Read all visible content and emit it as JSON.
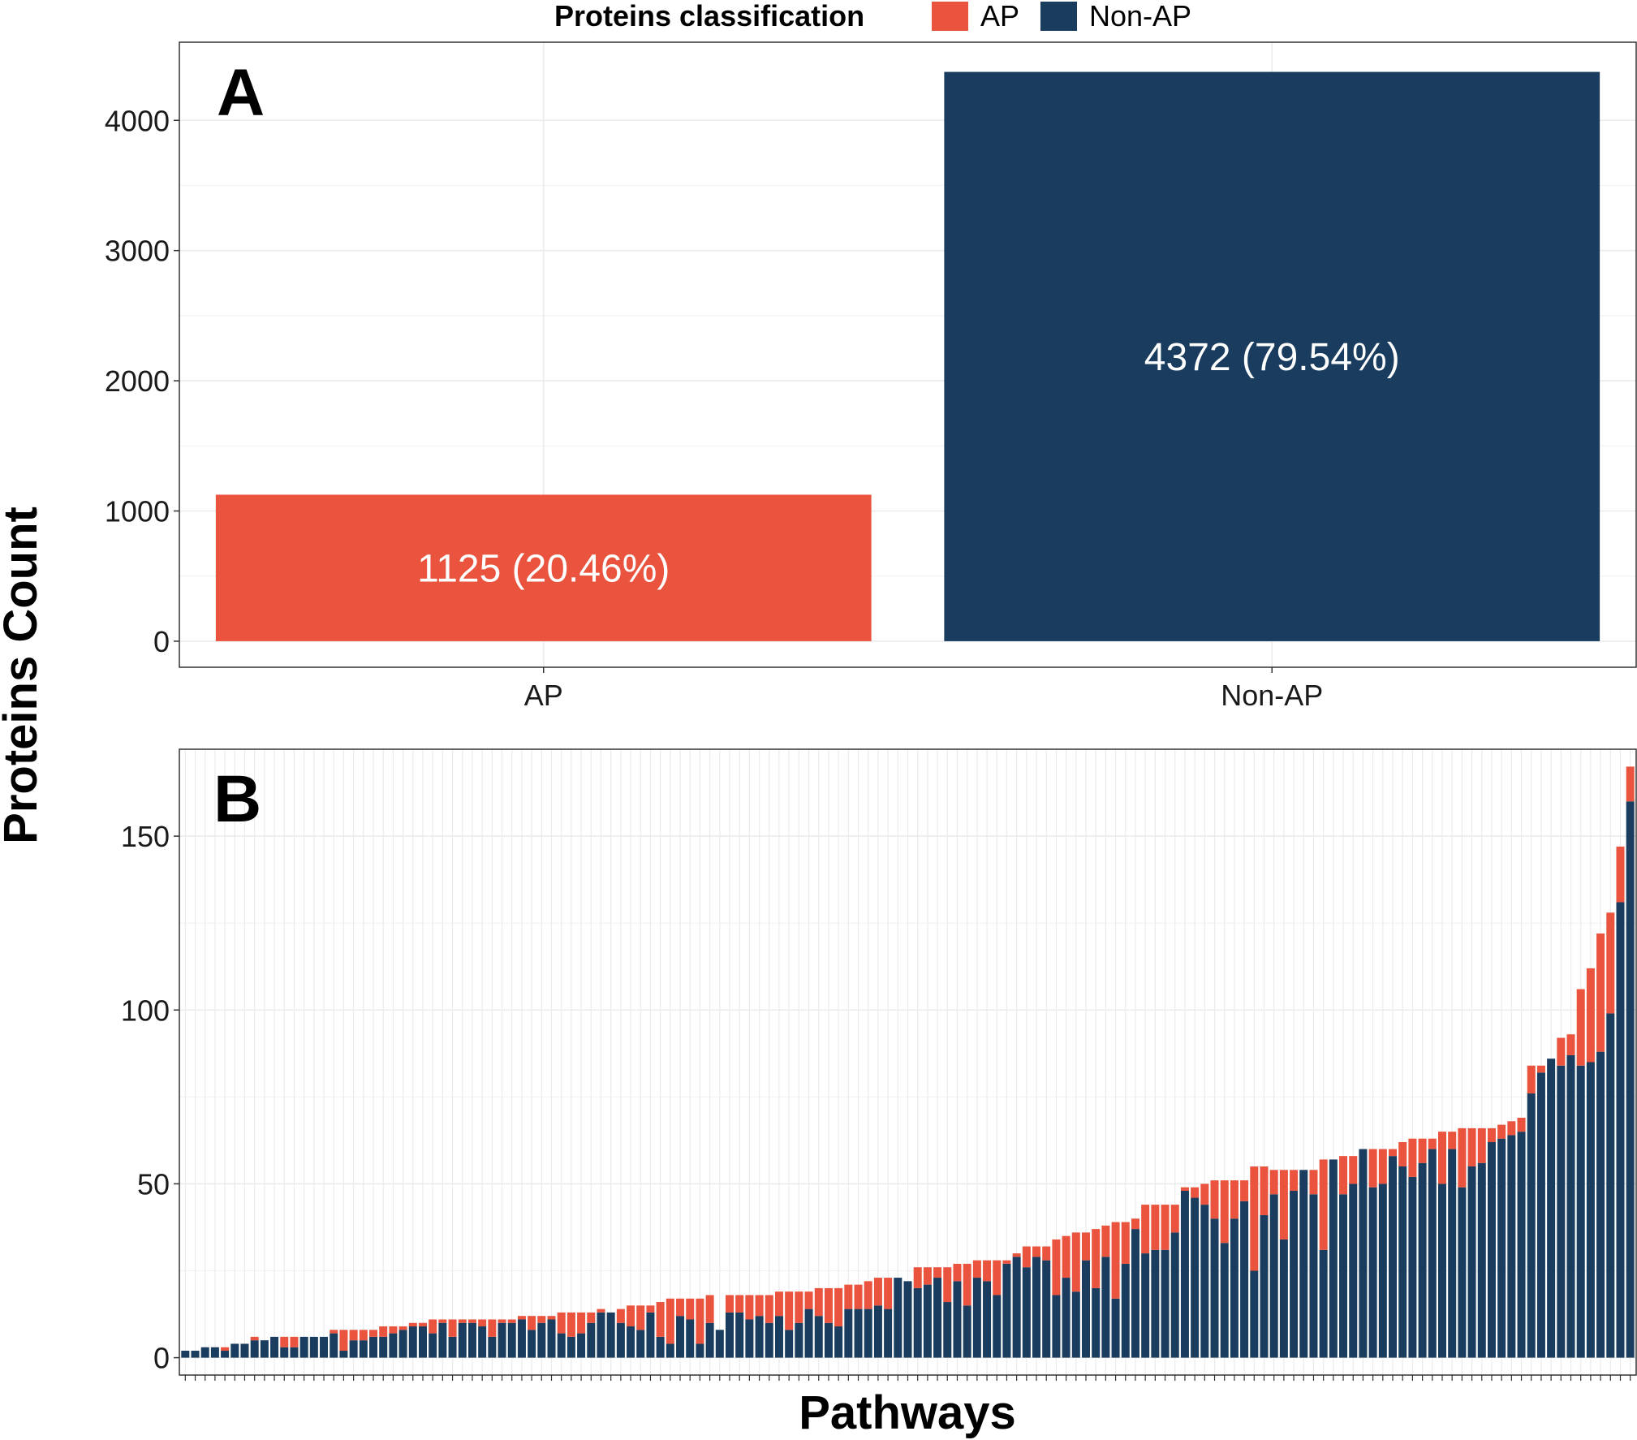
{
  "colors": {
    "AP": "#EA533D",
    "Non-AP": "#1A3C5E",
    "grid": "#ebebeb",
    "panel_border": "#333333"
  },
  "legend": {
    "title": "Proteins classification",
    "position": "top",
    "items": [
      {
        "key": "AP",
        "label": "AP"
      },
      {
        "key": "Non-AP",
        "label": "Non-AP"
      }
    ]
  },
  "y_axis_title": "Proteins Count",
  "chart_data": [
    {
      "panel": "A",
      "type": "bar",
      "categories": [
        "AP",
        "Non-AP"
      ],
      "values": [
        1125,
        4372
      ],
      "bar_labels": [
        "1125 (20.46%)",
        "4372 (79.54%)"
      ],
      "ylim": [
        -200,
        4600
      ],
      "y_ticks": [
        0,
        1000,
        2000,
        3000,
        4000
      ],
      "grid": true
    },
    {
      "panel": "B",
      "type": "bar",
      "stacked": true,
      "xlabel": "Pathways",
      "ylim": [
        -5,
        175
      ],
      "y_ticks": [
        0,
        50,
        100,
        150
      ],
      "grid": true,
      "series": [
        {
          "name": "Non-AP",
          "values": [
            2,
            2,
            3,
            3,
            2,
            4,
            4,
            5,
            5,
            6,
            3,
            3,
            6,
            6,
            6,
            7,
            2,
            5,
            5,
            6,
            6,
            7,
            8,
            9,
            9,
            7,
            10,
            6,
            10,
            10,
            9,
            6,
            10,
            10,
            11,
            8,
            10,
            11,
            7,
            6,
            7,
            10,
            13,
            13,
            10,
            9,
            8,
            13,
            6,
            4,
            12,
            11,
            4,
            10,
            8,
            13,
            13,
            11,
            12,
            10,
            12,
            8,
            10,
            14,
            12,
            10,
            9,
            14,
            14,
            14,
            15,
            14,
            23,
            22,
            20,
            21,
            23,
            16,
            22,
            15,
            23,
            22,
            18,
            27,
            29,
            26,
            29,
            28,
            18,
            23,
            19,
            28,
            20,
            29,
            17,
            27,
            37,
            30,
            31,
            31,
            36,
            48,
            46,
            44,
            40,
            33,
            40,
            45,
            25,
            41,
            47,
            34,
            48,
            54,
            47,
            31,
            57,
            47,
            50,
            60,
            49,
            50,
            58,
            55,
            52,
            56,
            60,
            50,
            60,
            49,
            55,
            56,
            62,
            63,
            64,
            65,
            76,
            82,
            86,
            84,
            87,
            84,
            85,
            88,
            99,
            131,
            160
          ]
        },
        {
          "name": "AP",
          "values": [
            0,
            0,
            0,
            0,
            1,
            0,
            0,
            1,
            0,
            0,
            3,
            3,
            0,
            0,
            0,
            1,
            6,
            3,
            3,
            2,
            3,
            2,
            1,
            1,
            1,
            4,
            1,
            5,
            1,
            1,
            2,
            5,
            1,
            1,
            1,
            4,
            2,
            1,
            6,
            7,
            6,
            3,
            1,
            0,
            4,
            6,
            7,
            2,
            10,
            13,
            5,
            6,
            13,
            8,
            0,
            5,
            5,
            7,
            6,
            8,
            7,
            11,
            9,
            5,
            8,
            10,
            11,
            7,
            7,
            8,
            8,
            9,
            0,
            0,
            6,
            5,
            3,
            10,
            5,
            12,
            5,
            6,
            10,
            1,
            1,
            6,
            3,
            4,
            16,
            12,
            17,
            8,
            17,
            9,
            22,
            12,
            3,
            14,
            13,
            13,
            8,
            1,
            3,
            6,
            11,
            18,
            11,
            6,
            30,
            14,
            7,
            20,
            6,
            0,
            7,
            26,
            0,
            11,
            8,
            0,
            11,
            10,
            2,
            7,
            11,
            7,
            3,
            15,
            5,
            17,
            11,
            10,
            4,
            4,
            4,
            4,
            8,
            2,
            0,
            8,
            6,
            22,
            27,
            34,
            29,
            16,
            10
          ]
        }
      ]
    }
  ]
}
